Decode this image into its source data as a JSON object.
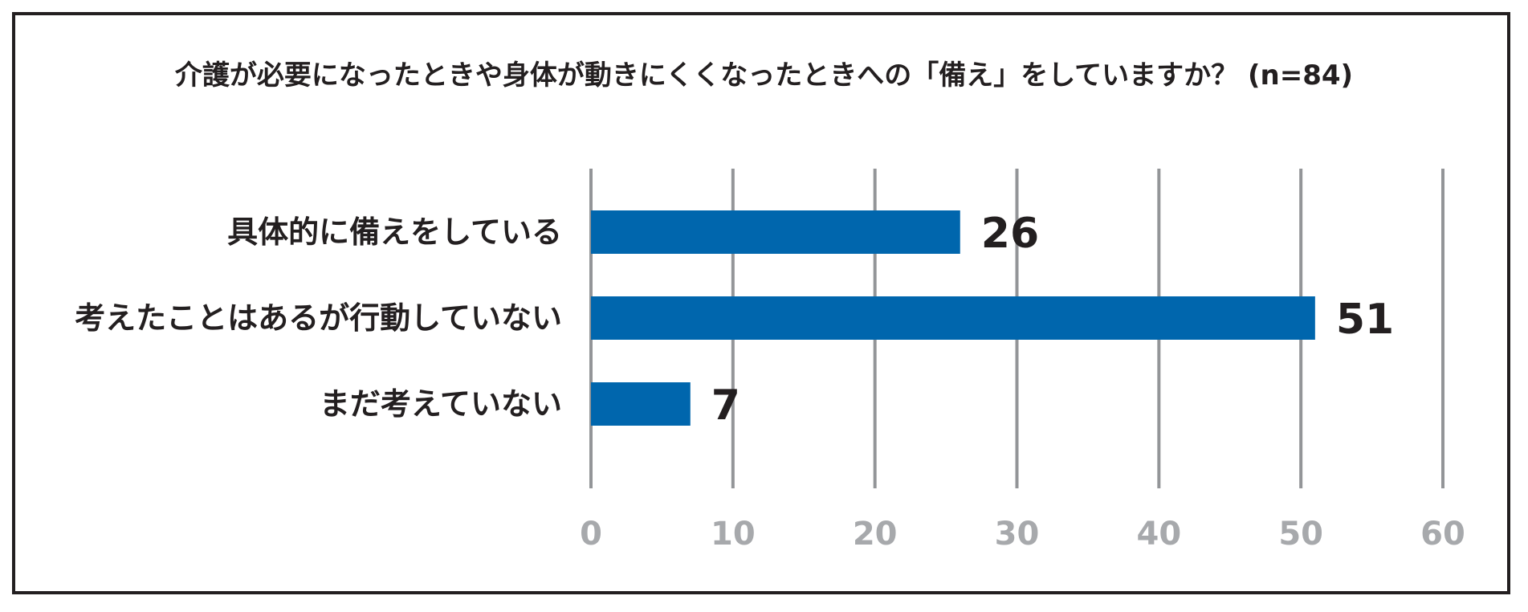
{
  "chart_data": {
    "type": "bar",
    "orientation": "horizontal",
    "title": "介護が必要になったときや身体が動きにくくなったときへの「備え」をしていますか？ (n=84)",
    "categories": [
      "具体的に備えをしている",
      "考えたことはあるが行動していない",
      "まだ考えていない"
    ],
    "values": [
      26,
      51,
      7
    ],
    "xlim": [
      0,
      60
    ],
    "x_ticks": [
      0,
      10,
      20,
      30,
      40,
      50,
      60
    ],
    "grid": true,
    "legend": "none",
    "bar_color": "#0066ad",
    "grid_color": "#939598",
    "tick_color": "#a7a9ac",
    "text_color": "#231f20"
  }
}
